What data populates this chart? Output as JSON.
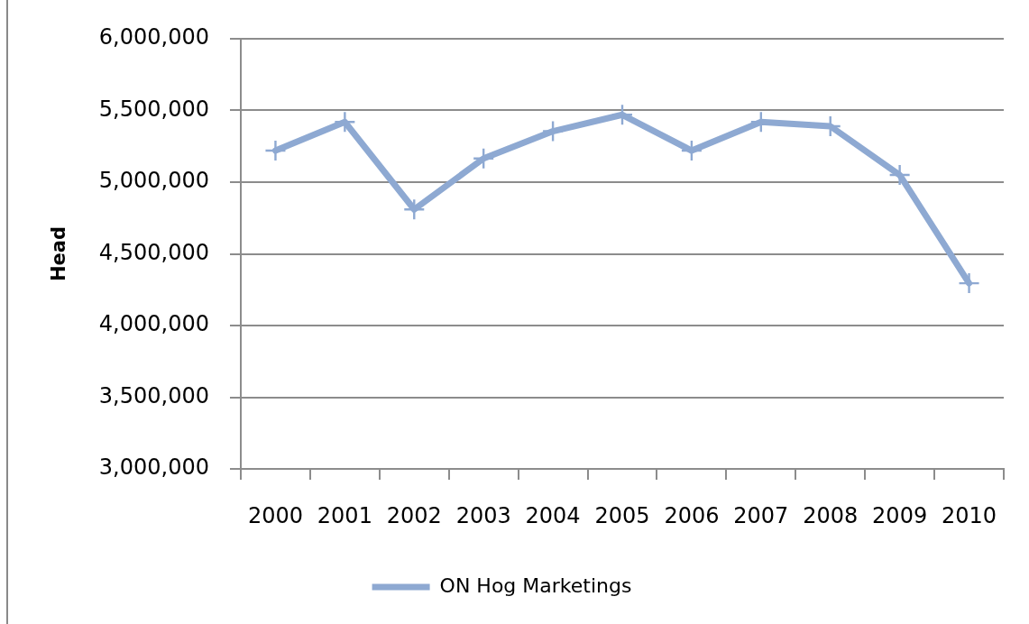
{
  "chart_data": {
    "type": "line",
    "ylabel": "Head",
    "categories": [
      "2000",
      "2001",
      "2002",
      "2003",
      "2004",
      "2005",
      "2006",
      "2007",
      "2008",
      "2009",
      "2010"
    ],
    "series": [
      {
        "name": "ON Hog Marketings",
        "color": "#8ea9d2",
        "values": [
          5220000,
          5420000,
          4810000,
          5165000,
          5355000,
          5470000,
          5220000,
          5420000,
          5390000,
          5050000,
          4295000
        ]
      }
    ],
    "ylim": [
      3000000,
      6000000
    ],
    "yticks": [
      {
        "value": 3000000,
        "label": "3,000,000"
      },
      {
        "value": 3500000,
        "label": "3,500,000"
      },
      {
        "value": 4000000,
        "label": "4,000,000"
      },
      {
        "value": 4500000,
        "label": "4,500,000"
      },
      {
        "value": 5000000,
        "label": "5,000,000"
      },
      {
        "value": 5500000,
        "label": "5,500,000"
      },
      {
        "value": 6000000,
        "label": "6,000,000"
      }
    ],
    "grid": "y",
    "legend": "bottom",
    "marker": "cross",
    "line_style": "solid"
  }
}
